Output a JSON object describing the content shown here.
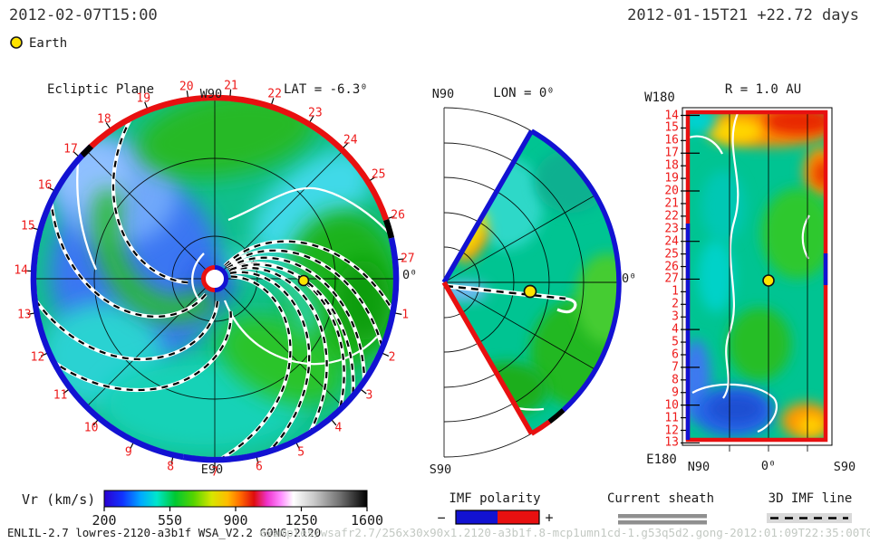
{
  "header": {
    "obs_time": "2012-02-07T15:00",
    "run_time": "2012-01-15T21 +22.72 days",
    "earth_label": "Earth"
  },
  "panels": {
    "ecliptic": {
      "title": "Ecliptic Plane",
      "w90": "W90",
      "e90": "E90",
      "zero": "0⁰",
      "lat": "LAT = -6.3⁰",
      "dates": [
        1,
        2,
        3,
        4,
        5,
        6,
        7,
        8,
        9,
        10,
        11,
        12,
        13,
        14,
        15,
        16,
        17,
        18,
        19,
        20,
        21,
        22,
        23,
        24,
        25,
        26,
        27
      ]
    },
    "meridional": {
      "n90": "N90",
      "lon": "LON = 0⁰",
      "s90": "S90",
      "zero": "0⁰"
    },
    "map": {
      "title": "R = 1.0 AU",
      "w180": "W180",
      "e180": "E180",
      "n90": "N90",
      "zero": "0⁰",
      "s90": "S90",
      "dates": [
        14,
        15,
        16,
        17,
        18,
        19,
        20,
        21,
        22,
        23,
        24,
        25,
        26,
        27,
        1,
        2,
        3,
        4,
        5,
        6,
        7,
        8,
        9,
        10,
        11,
        12,
        13
      ]
    }
  },
  "legend": {
    "vr": {
      "label": "Vr (km/s)",
      "ticks": [
        "200",
        "550",
        "900",
        "1250",
        "1600"
      ]
    },
    "imf": {
      "label": "IMF polarity",
      "minus": "−",
      "plus": "+"
    },
    "sheath": {
      "label": "Current sheath"
    },
    "imf3d": {
      "label": "3D IMF line"
    }
  },
  "footer": {
    "model_info": "ENLIL-2.7 lowres-2120-a3b1f WSA_V2.2 GONG-2120",
    "run_path": "examples/wsafr2.7/256x30x90x1.2120-a3b1f.8-mcp1umn1cd-1.g53q5d2.gong-2012:01:09T22:35:00T00   2012-02-07"
  },
  "colors": {
    "label_red": "#ee1c1c",
    "rim_red": "#e81010",
    "rim_blue": "#1212d2",
    "earth_yellow": "#ffe400",
    "sheath_gray": "#8f8f8f",
    "imf_swatch_gray": "#d9d9d9",
    "watermark_gray": "#c3c9c3"
  },
  "chart_data": [
    {
      "type": "heatmap",
      "title": "Ecliptic Plane",
      "projection": "polar, Sun-centered, Earth toward 0 deg (right)",
      "slice": "LAT = -6.3 deg",
      "quantity": "Vr (km/s)",
      "angle_labels_days": [
        1,
        2,
        3,
        4,
        5,
        6,
        7,
        8,
        9,
        10,
        11,
        12,
        13,
        14,
        15,
        16,
        17,
        18,
        19,
        20,
        21,
        22,
        23,
        24,
        25,
        26,
        27
      ],
      "compass_labels": {
        "top": "W90",
        "bottom": "E90",
        "right": "0⁰"
      },
      "earth_marker": {
        "longitude_deg": 0,
        "radius_fraction": 0.49
      },
      "boundary_polarity": "red (+) across the west/top limb days 19-26, blue (-) around east/bottom/left limb days 27-18, black neutral breaks near days 18 and 26",
      "inner_boundary_polarity": "red (-x side) / blue (+x side) ring around Sun",
      "regions_vr_estimate_kms": [
        {
          "area": "west (left) sector",
          "vr": "300-400 (blue slow wind)"
        },
        {
          "area": "bottom and south-east sector",
          "vr": "400-500 (cyan)"
        },
        {
          "area": "top and earth-side (right) sector",
          "vr": "500-650 (green fast streams)"
        }
      ],
      "overlays": [
        "white current sheet spirals",
        "black-on-white dashed 3D IMF Parker spirals converging toward Earth sector"
      ]
    },
    {
      "type": "heatmap",
      "title": "Meridional plane LON = 0⁰",
      "projection": "polar half-disk, rotation axis vertical, N90 top / S90 bottom, 0⁰ at right",
      "quantity": "Vr (km/s)",
      "wedge_extent_deg": "+60 to -60 latitude colored; boundary blue (-) on north edge/arc, red (+) on south edge, black break near south arc",
      "earth_marker": {
        "latitude_deg": -6.3,
        "radius_fraction": 0.49
      },
      "regions_vr_estimate_kms": [
        {
          "area": "bulk of wedge",
          "vr": "450-550 (teal/green)"
        },
        {
          "area": "near-Sun high-latitude streak",
          "vr": "700-900 (yellow/orange)"
        },
        {
          "area": "just south of equator near Sun",
          "vr": "350 (light blue)"
        }
      ],
      "overlays": [
        "white current sheet line",
        "dashed 3D IMF line from Sun through Earth with white hook"
      ]
    },
    {
      "type": "heatmap",
      "title": "R = 1.0 AU",
      "projection": "longitude (W180 top to E180 bottom, day labels 14-27 then 1-13) vs latitude (N90 left, 0⁰ center, S90 right)",
      "quantity": "Vr (km/s)",
      "earth_marker": {
        "longitude_label_day": 27,
        "latitude_deg": 0
      },
      "boundary": "red frame (+) with blue (-) segment along lower-left edge and small blue segment mid-right",
      "regions_vr_estimate_kms": [
        {
          "area": "top rows (days 14-15, W longitudes)",
          "vr": "650-900 (orange/red band)"
        },
        {
          "area": "mid map",
          "vr": "450-550 (teal/green)"
        },
        {
          "area": "lower-left rows (days 9-12)",
          "vr": "300-380 (blue blobs)"
        },
        {
          "area": "bottom-right corner (day 12-13, S latitudes)",
          "vr": "650-800 (orange/yellow)"
        }
      ],
      "overlays": [
        "white current-sheet contour meandering north-south",
        "vertical graticule at N45/0/S45"
      ]
    },
    {
      "type": "heatmap",
      "colorbar": {
        "label": "Vr (km/s)",
        "min": 200,
        "max": 1600,
        "ticks": [
          200,
          550,
          900,
          1250,
          1600
        ],
        "gradient": "blue-cyan-green-yellow-orange-red-magenta-white-gray-black"
      },
      "legend_items": [
        {
          "label": "IMF polarity",
          "negative_color": "#1212d2",
          "positive_color": "#e81010"
        },
        {
          "label": "Current sheath",
          "style": "double gray line"
        },
        {
          "label": "3D IMF line",
          "style": "black dashed line on light gray"
        }
      ]
    }
  ]
}
